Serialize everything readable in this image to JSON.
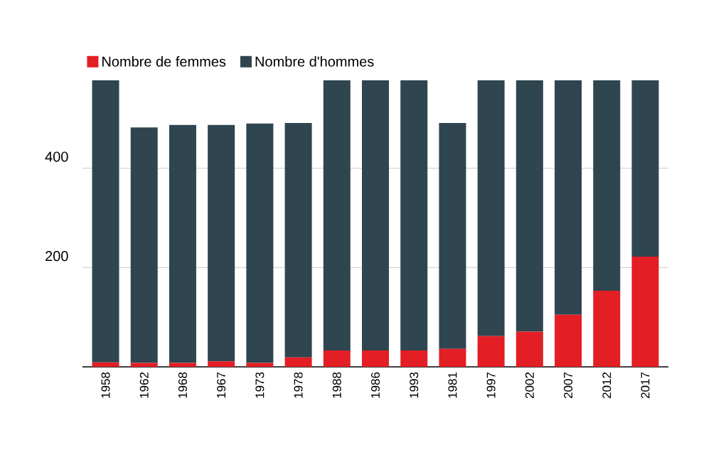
{
  "chart_data": {
    "type": "bar",
    "stacked": true,
    "categories": [
      "1958",
      "1962",
      "1968",
      "1967",
      "1973",
      "1978",
      "1988",
      "1986",
      "1993",
      "1981",
      "1997",
      "2002",
      "2007",
      "2012",
      "2017"
    ],
    "series": [
      {
        "name": "Nombre de femmes",
        "color": "#e31e24",
        "values": [
          9,
          8,
          8,
          11,
          8,
          19,
          33,
          33,
          33,
          36,
          62,
          71,
          105,
          153,
          222
        ]
      },
      {
        "name": "Nombre d'hommes",
        "color": "#2f4550",
        "values": [
          568,
          474,
          479,
          476,
          482,
          472,
          544,
          544,
          544,
          455,
          515,
          506,
          472,
          424,
          355
        ]
      }
    ],
    "ylim": [
      0,
      577
    ],
    "yticks": [
      200,
      400
    ],
    "grid": "y",
    "legend": "top left"
  }
}
